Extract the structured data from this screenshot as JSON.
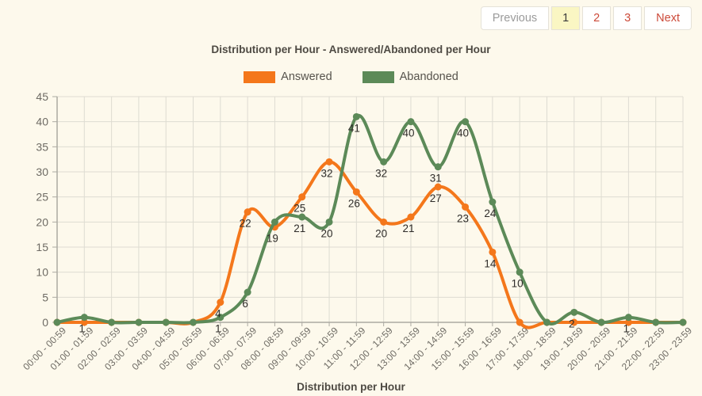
{
  "pagination": {
    "items": [
      {
        "label": "Previous",
        "state": "muted"
      },
      {
        "label": "1",
        "state": "active"
      },
      {
        "label": "2",
        "state": "link"
      },
      {
        "label": "3",
        "state": "link"
      },
      {
        "label": "Next",
        "state": "link"
      }
    ]
  },
  "chart_data": {
    "type": "line",
    "title": "Distribution per Hour - Answered/Abandoned per Hour",
    "xlabel": "Distribution per Hour",
    "ylabel": "",
    "categories": [
      "00:00 - 00:59",
      "01:00 - 01:59",
      "02:00 - 02:59",
      "03:00 - 03:59",
      "04:00 - 04:59",
      "05:00 - 05:59",
      "06:00 - 06:59",
      "07:00 - 07:59",
      "08:00 - 08:59",
      "09:00 - 09:59",
      "10:00 - 10:59",
      "11:00 - 11:59",
      "12:00 - 12:59",
      "13:00 - 13:59",
      "14:00 - 14:59",
      "15:00 - 15:59",
      "16:00 - 16:59",
      "17:00 - 17:59",
      "18:00 - 18:59",
      "19:00 - 19:59",
      "20:00 - 20:59",
      "21:00 - 21:59",
      "22:00 - 22:59",
      "23:00 - 23:59"
    ],
    "series": [
      {
        "name": "Answered",
        "color": "#F4771B",
        "values": [
          0,
          0,
          0,
          0,
          0,
          0,
          4,
          22,
          19,
          25,
          32,
          26,
          20,
          21,
          27,
          23,
          14,
          0,
          0,
          0,
          0,
          0,
          0,
          0
        ],
        "point_labels": [
          "",
          "",
          "",
          "",
          "",
          "",
          "4",
          "22",
          "19",
          "25",
          "32",
          "26",
          "20",
          "21",
          "27",
          "23",
          "14",
          "",
          "",
          "",
          "",
          "",
          "",
          ""
        ]
      },
      {
        "name": "Abandoned",
        "color": "#5C8A58",
        "values": [
          0,
          1,
          0,
          0,
          0,
          0,
          1,
          6,
          20,
          21,
          20,
          41,
          32,
          40,
          31,
          40,
          24,
          10,
          0,
          2,
          0,
          1,
          0,
          0
        ],
        "point_labels": [
          "",
          "1",
          "",
          "",
          "",
          "",
          "1",
          "6",
          "",
          "21",
          "20",
          "41",
          "32",
          "40",
          "31",
          "40",
          "24",
          "10",
          "",
          "2",
          "",
          "1",
          "",
          ""
        ]
      }
    ],
    "ylim": [
      0,
      45
    ],
    "yticks": [
      0,
      5,
      10,
      15,
      20,
      25,
      30,
      35,
      40,
      45
    ],
    "grid": true,
    "smooth": true,
    "legend_position": "top"
  },
  "colors": {
    "page_background": "#FDF9EC",
    "gridline": "#DEDCD2",
    "axis_line": "#ACAAA2",
    "axis_text": "#6E6B64",
    "value_label_text": "#2E2C29",
    "title_text": "#4E4A43",
    "answered": "#F4771B",
    "abandoned": "#5C8A58",
    "pagination_link": "#CC4A39",
    "pagination_muted": "#9B9B9B",
    "pagination_active_bg": "#FAF6C3"
  }
}
